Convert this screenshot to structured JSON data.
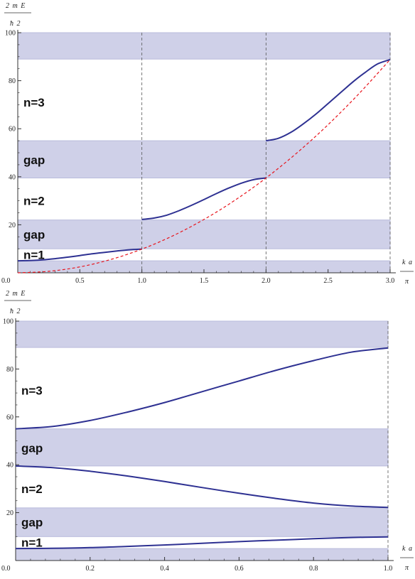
{
  "colors": {
    "band_fill": "#cfd0e8",
    "band_stroke": "#b9bbdc",
    "curve": "#2e3192",
    "parabola": "#e8141c",
    "axis": "#333333",
    "dashed_guide": "#555555"
  },
  "chart_data": [
    {
      "type": "line",
      "title": "",
      "ylabel_numerator": "2 m E",
      "ylabel_denominator": "ħ 2",
      "xlabel_numerator": "k a",
      "xlabel_denominator": "π",
      "xlim": [
        0,
        3
      ],
      "ylim": [
        0,
        100
      ],
      "xticks": [
        "0.0",
        "0.5",
        "1.0",
        "1.5",
        "2.0",
        "2.5",
        "3.0"
      ],
      "yticks": [
        "20",
        "40",
        "60",
        "80",
        "100"
      ],
      "vertical_dashed_lines_x": [
        1,
        2,
        3
      ],
      "bands": [
        {
          "y0": 0,
          "y1": 5
        },
        {
          "y0": 10,
          "y1": 22
        },
        {
          "y0": 39.5,
          "y1": 55
        },
        {
          "y0": 89,
          "y1": 100
        }
      ],
      "band_labels": [
        {
          "text": "n=1",
          "y": 7.5
        },
        {
          "text": "gap",
          "y": 16
        },
        {
          "text": "n=2",
          "y": 30
        },
        {
          "text": "gap",
          "y": 47
        },
        {
          "text": "n=3",
          "y": 71
        }
      ],
      "series": [
        {
          "kind": "band-curve",
          "x": [
            0,
            0.1,
            0.2,
            0.3,
            0.4,
            0.5,
            0.6,
            0.7,
            0.8,
            0.9,
            1.0
          ],
          "y": [
            5.0,
            5.1,
            5.4,
            5.9,
            6.5,
            7.2,
            7.9,
            8.5,
            9.1,
            9.6,
            9.87
          ]
        },
        {
          "kind": "band-curve",
          "x": [
            1.0,
            1.1,
            1.2,
            1.3,
            1.4,
            1.5,
            1.6,
            1.7,
            1.8,
            1.9,
            2.0
          ],
          "y": [
            22.2,
            22.8,
            24.0,
            25.9,
            28.1,
            30.5,
            33.0,
            35.3,
            37.3,
            38.8,
            39.5
          ]
        },
        {
          "kind": "band-curve",
          "x": [
            2.0,
            2.1,
            2.2,
            2.3,
            2.4,
            2.5,
            2.6,
            2.7,
            2.8,
            2.9,
            3.0
          ],
          "y": [
            55.0,
            56.0,
            58.5,
            62.0,
            66.0,
            70.5,
            75.0,
            79.5,
            83.5,
            87.0,
            88.8
          ]
        },
        {
          "kind": "free-particle",
          "x": [
            0,
            0.25,
            0.5,
            0.75,
            1.0,
            1.25,
            1.5,
            1.75,
            2.0,
            2.25,
            2.5,
            2.75,
            3.0
          ],
          "y": [
            0,
            0.62,
            2.47,
            5.55,
            9.87,
            15.42,
            22.21,
            30.23,
            39.48,
            49.97,
            61.69,
            74.64,
            88.83
          ]
        }
      ]
    },
    {
      "type": "line",
      "title": "",
      "ylabel_numerator": "2 m E",
      "ylabel_denominator": "ħ 2",
      "xlabel_numerator": "k a",
      "xlabel_denominator": "π",
      "xlim": [
        0,
        1
      ],
      "ylim": [
        0,
        100
      ],
      "xticks": [
        "0.0",
        "0.2",
        "0.4",
        "0.6",
        "0.8",
        "1.0"
      ],
      "yticks": [
        "20",
        "40",
        "60",
        "80",
        "100"
      ],
      "vertical_dashed_lines_x": [
        1
      ],
      "bands": [
        {
          "y0": 0,
          "y1": 5
        },
        {
          "y0": 10,
          "y1": 22
        },
        {
          "y0": 39.5,
          "y1": 55
        },
        {
          "y0": 89,
          "y1": 100
        }
      ],
      "band_labels": [
        {
          "text": "n=1",
          "y": 7.5
        },
        {
          "text": "gap",
          "y": 16
        },
        {
          "text": "n=2",
          "y": 30
        },
        {
          "text": "gap",
          "y": 47
        },
        {
          "text": "n=3",
          "y": 71
        }
      ],
      "series": [
        {
          "kind": "band-curve",
          "x": [
            0,
            0.1,
            0.2,
            0.3,
            0.4,
            0.5,
            0.6,
            0.7,
            0.8,
            0.9,
            1.0
          ],
          "y": [
            5.0,
            5.1,
            5.4,
            5.9,
            6.5,
            7.2,
            7.9,
            8.5,
            9.1,
            9.6,
            9.87
          ]
        },
        {
          "kind": "band-curve",
          "x": [
            0,
            0.1,
            0.2,
            0.3,
            0.4,
            0.5,
            0.6,
            0.7,
            0.8,
            0.9,
            1.0
          ],
          "y": [
            39.5,
            38.8,
            37.3,
            35.3,
            33.0,
            30.5,
            28.1,
            25.9,
            24.0,
            22.8,
            22.2
          ]
        },
        {
          "kind": "band-curve",
          "x": [
            0,
            0.1,
            0.2,
            0.3,
            0.4,
            0.5,
            0.6,
            0.7,
            0.8,
            0.9,
            1.0
          ],
          "y": [
            55.0,
            56.0,
            58.5,
            62.0,
            66.0,
            70.5,
            75.0,
            79.5,
            83.5,
            87.0,
            88.8
          ]
        }
      ]
    }
  ]
}
